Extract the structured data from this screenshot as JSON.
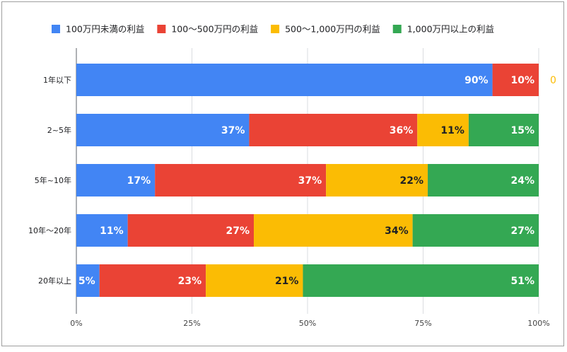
{
  "chart_data": {
    "type": "bar",
    "orientation": "horizontal",
    "stacked": "percent",
    "legend_position": "top",
    "grid": true,
    "categories": [
      "1年以下",
      "2~5年",
      "5年~10年",
      "10年〜20年",
      "20年以上"
    ],
    "series": [
      {
        "name": "100万円未満の利益",
        "color": "#4285f4",
        "values": [
          90,
          37,
          17,
          11,
          5
        ]
      },
      {
        "name": "100〜500万円の利益",
        "color": "#ea4335",
        "values": [
          10,
          36,
          37,
          27,
          23
        ]
      },
      {
        "name": "500〜1,000万円の利益",
        "color": "#fbbc04",
        "values": [
          0,
          11,
          22,
          34,
          21
        ]
      },
      {
        "name": "1,000万円以上の利益",
        "color": "#34a853",
        "values": [
          0,
          15,
          24,
          27,
          51
        ]
      }
    ],
    "label_colors": [
      "#ffffff",
      "#ffffff",
      "#202124",
      "#ffffff"
    ],
    "zero_label_color": "#fbbc04",
    "x_ticks": [
      "0%",
      "25%",
      "50%",
      "75%",
      "100%"
    ],
    "xlim": [
      0,
      100
    ]
  }
}
